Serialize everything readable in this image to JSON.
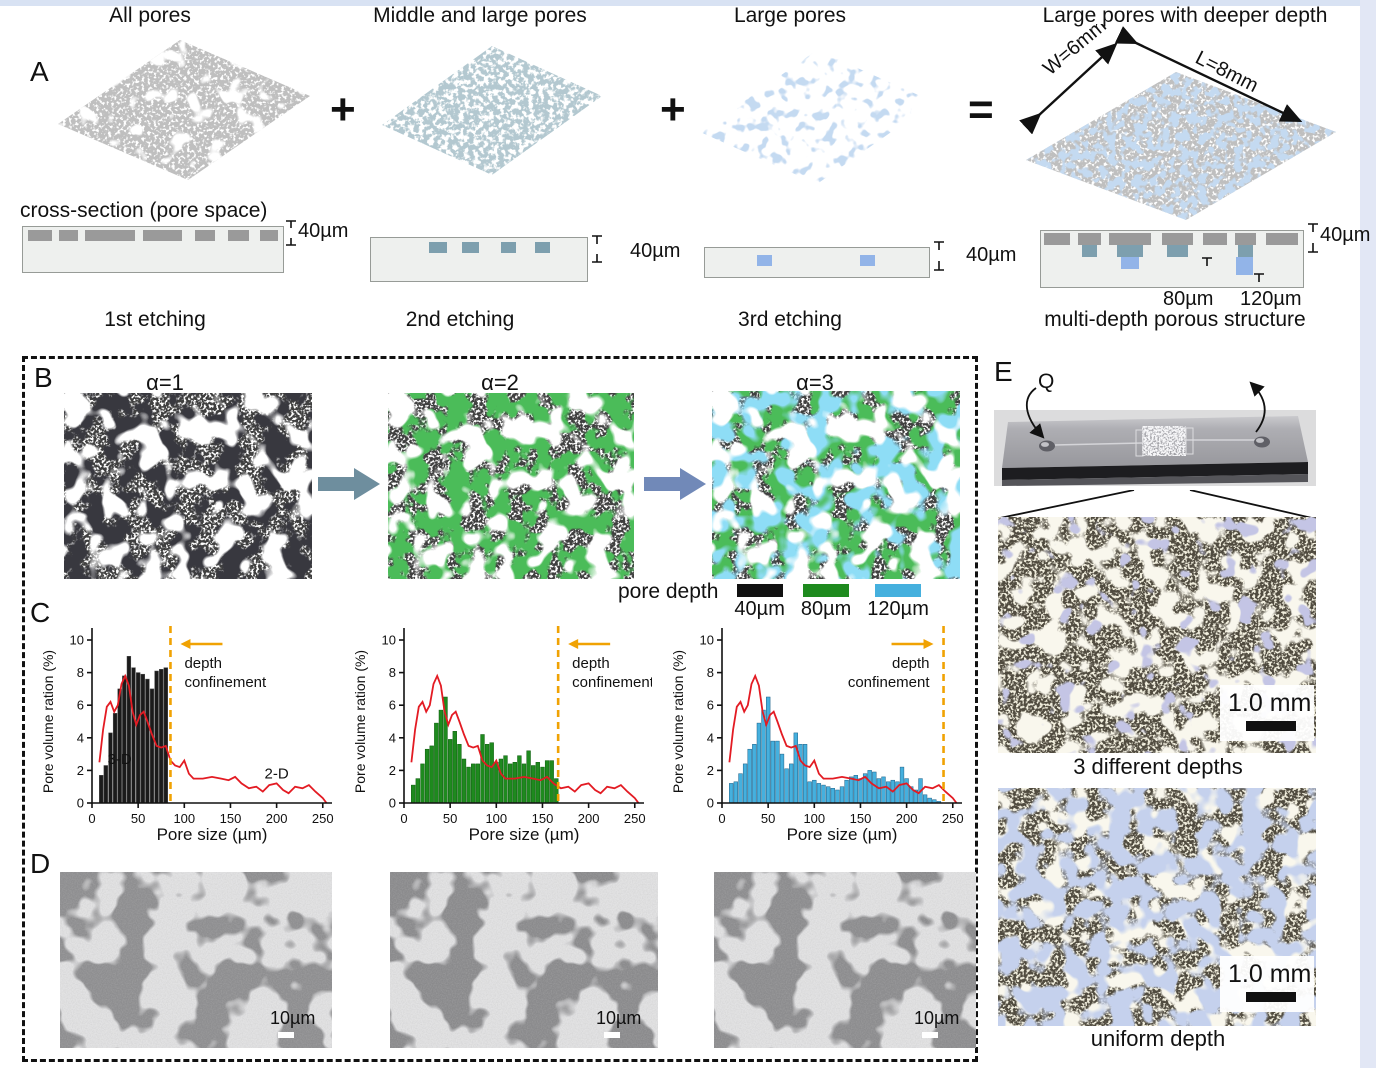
{
  "colors": {
    "orange_confinement": "#f0a203",
    "red_curve": "#e31b23",
    "bar_black": "#1b1b1b",
    "bar_green": "#1e8a1e",
    "bar_cyan": "#45b0de",
    "slab_gray": "#858585",
    "slab_teal": "#7394a1",
    "slab_blue": "#8fb2e0",
    "block_arrow_1": "#6e8e9e",
    "block_arrow_2": "#7189b8",
    "frame_blue": "#dde6f5"
  },
  "panelA": {
    "label": "A",
    "column_titles": [
      "All pores",
      "Middle and large pores",
      "Large pores",
      "Large pores with deeper depth"
    ],
    "operators": [
      "+",
      "+",
      "="
    ],
    "dim_width": "W=6mm",
    "dim_length": "L=8mm",
    "cross_section_heading": "cross-section (pore space)",
    "sections": [
      {
        "depth_label": "40µm",
        "caption": "1st etching"
      },
      {
        "depth_label": "40µm",
        "caption": "2nd etching"
      },
      {
        "depth_label": "40µm",
        "caption": "3rd etching"
      },
      {
        "depth_label": "40µm",
        "depth_80": "80µm",
        "depth_120": "120µm",
        "caption": "multi-depth porous structure"
      }
    ]
  },
  "panelB": {
    "label": "B",
    "alphas": [
      "α=1",
      "α=2",
      "α=3"
    ],
    "legend": {
      "title": "pore depth",
      "items": [
        {
          "label": "40µm",
          "color": "#111111"
        },
        {
          "label": "80µm",
          "color": "#1e8a1e"
        },
        {
          "label": "120µm",
          "color": "#45b0de"
        }
      ]
    }
  },
  "panelC": {
    "label": "C"
  },
  "panelD": {
    "label": "D",
    "scalebar_label": "10µm"
  },
  "panelE": {
    "label": "E",
    "flow_label": "Q",
    "images": [
      {
        "caption": "3 different depths",
        "scalebar": "1.0 mm"
      },
      {
        "caption": "uniform depth",
        "scalebar": "1.0 mm"
      }
    ]
  },
  "chart_data": [
    {
      "type": "bar",
      "title": "",
      "xlabel": "Pore size (µm)",
      "ylabel": "Pore volume ration (%)",
      "xlim": [
        0,
        260
      ],
      "ylim": [
        0,
        10
      ],
      "xticks": [
        0,
        50,
        100,
        150,
        200,
        250
      ],
      "yticks": [
        0,
        2,
        4,
        6,
        8,
        10
      ],
      "bin_width": 5,
      "bar_color": "#1b1b1b",
      "bar_edge": "#4a4a4a",
      "bars": {
        "x": [
          10,
          15,
          20,
          25,
          30,
          35,
          40,
          45,
          50,
          55,
          60,
          65,
          70,
          75,
          80
        ],
        "values": [
          1.7,
          2.3,
          4.3,
          5.5,
          7.0,
          7.8,
          9.0,
          8.3,
          8.0,
          7.9,
          7.6,
          7.0,
          8.1,
          8.2,
          8.3
        ]
      },
      "line_2d": {
        "color": "#e31b23",
        "x": [
          8,
          12,
          16,
          20,
          24,
          28,
          32,
          36,
          40,
          44,
          48,
          52,
          56,
          60,
          65,
          70,
          75,
          80,
          85,
          90,
          95,
          100,
          105,
          110,
          120,
          130,
          140,
          148,
          155,
          162,
          170,
          178,
          185,
          192,
          200,
          207,
          213,
          220,
          228,
          235,
          242,
          250,
          254
        ],
        "y": [
          2.5,
          4.5,
          5.9,
          6.2,
          5.6,
          6.0,
          7.3,
          7.8,
          7.2,
          5.6,
          4.8,
          5.4,
          5.6,
          5.0,
          4.2,
          3.5,
          3.4,
          3.5,
          2.6,
          2.3,
          2.2,
          2.6,
          1.8,
          1.5,
          1.5,
          1.6,
          1.5,
          1.4,
          1.6,
          1.2,
          0.9,
          1.0,
          0.7,
          1.1,
          1.2,
          0.8,
          0.6,
          1.0,
          0.9,
          1.1,
          0.7,
          0.3,
          0.0
        ]
      },
      "confinement_x": 85,
      "confinement_color": "#f0a203",
      "annotation": "depth confinement",
      "arrow_dir": "left",
      "labels": [
        {
          "text": "3-D",
          "x": 30,
          "y": 2.4,
          "color": "#ffffff"
        },
        {
          "text": "2-D",
          "x": 200,
          "y": 1.5,
          "color": "#e31b23"
        }
      ]
    },
    {
      "type": "bar",
      "title": "",
      "xlabel": "Pore size (µm)",
      "ylabel": "Pore volume ration (%)",
      "xlim": [
        0,
        260
      ],
      "ylim": [
        0,
        10
      ],
      "xticks": [
        0,
        50,
        100,
        150,
        200,
        250
      ],
      "yticks": [
        0,
        2,
        4,
        6,
        8,
        10
      ],
      "bin_width": 5,
      "bar_color": "#1e8a1e",
      "bar_edge": "#0c5a0c",
      "bars": {
        "x": [
          10,
          15,
          20,
          25,
          30,
          35,
          40,
          45,
          50,
          55,
          60,
          65,
          70,
          75,
          80,
          85,
          90,
          95,
          100,
          105,
          110,
          115,
          120,
          125,
          130,
          135,
          140,
          145,
          150,
          155,
          160,
          165
        ],
        "values": [
          1.1,
          1.5,
          2.4,
          3.3,
          3.5,
          4.9,
          5.7,
          6.5,
          3.9,
          4.4,
          3.6,
          2.7,
          2.2,
          2.4,
          2.4,
          4.2,
          3.6,
          3.7,
          2.5,
          2.7,
          2.9,
          2.4,
          2.5,
          2.9,
          2.4,
          3.2,
          2.3,
          2.5,
          2.2,
          2.6,
          2.6,
          1.5
        ]
      },
      "line_2d": {
        "color": "#e31b23",
        "x": [
          8,
          12,
          16,
          20,
          24,
          28,
          32,
          36,
          40,
          44,
          48,
          52,
          56,
          60,
          65,
          70,
          75,
          80,
          85,
          90,
          95,
          100,
          105,
          110,
          120,
          130,
          140,
          148,
          155,
          162,
          170,
          178,
          185,
          192,
          200,
          207,
          213,
          220,
          228,
          235,
          242,
          250,
          254
        ],
        "y": [
          2.5,
          4.5,
          5.9,
          6.2,
          5.6,
          6.0,
          7.3,
          7.8,
          7.2,
          5.6,
          4.8,
          5.4,
          5.6,
          5.0,
          4.2,
          3.5,
          3.4,
          3.5,
          2.6,
          2.3,
          2.2,
          2.6,
          1.8,
          1.5,
          1.5,
          1.6,
          1.5,
          1.4,
          1.6,
          1.2,
          0.9,
          1.0,
          0.7,
          1.1,
          1.2,
          0.8,
          0.6,
          1.0,
          0.9,
          1.1,
          0.7,
          0.3,
          0.0
        ]
      },
      "confinement_x": 167,
      "confinement_color": "#f0a203",
      "annotation": "depth confinement",
      "arrow_dir": "left",
      "labels": []
    },
    {
      "type": "bar",
      "title": "",
      "xlabel": "Pore size (µm)",
      "ylabel": "Pore volume ration (%)",
      "xlim": [
        0,
        260
      ],
      "ylim": [
        0,
        10
      ],
      "xticks": [
        0,
        50,
        100,
        150,
        200,
        250
      ],
      "yticks": [
        0,
        2,
        4,
        6,
        8,
        10
      ],
      "bin_width": 5,
      "bar_color": "#45b0de",
      "bar_edge": "#1c5f85",
      "bars": {
        "x": [
          10,
          15,
          20,
          25,
          30,
          35,
          40,
          45,
          50,
          55,
          60,
          65,
          70,
          75,
          80,
          85,
          90,
          95,
          100,
          105,
          110,
          115,
          120,
          125,
          130,
          135,
          140,
          145,
          150,
          155,
          160,
          165,
          170,
          175,
          180,
          185,
          190,
          195,
          200,
          205,
          210,
          215,
          220,
          225,
          230,
          235
        ],
        "values": [
          1.2,
          1.3,
          1.8,
          2.4,
          3.3,
          3.6,
          4.9,
          5.7,
          6.5,
          3.8,
          3.8,
          3.0,
          2.1,
          2.4,
          4.3,
          3.6,
          3.6,
          1.3,
          1.4,
          1.2,
          1.1,
          1.0,
          0.9,
          0.8,
          1.0,
          1.4,
          1.6,
          1.7,
          1.5,
          1.8,
          2.0,
          1.9,
          1.5,
          1.6,
          1.3,
          1.4,
          1.3,
          2.2,
          1.5,
          1.0,
          0.8,
          1.5,
          0.5,
          0.3,
          0.2,
          0.1
        ]
      },
      "line_2d": {
        "color": "#e31b23",
        "x": [
          8,
          12,
          16,
          20,
          24,
          28,
          32,
          36,
          40,
          44,
          48,
          52,
          56,
          60,
          65,
          70,
          75,
          80,
          85,
          90,
          95,
          100,
          105,
          110,
          120,
          130,
          140,
          148,
          155,
          162,
          170,
          178,
          185,
          192,
          200,
          207,
          213,
          220,
          228,
          235,
          242,
          250,
          254
        ],
        "y": [
          2.5,
          4.5,
          5.9,
          6.2,
          5.6,
          6.0,
          7.3,
          7.8,
          7.2,
          5.6,
          4.8,
          5.4,
          5.6,
          5.0,
          4.2,
          3.5,
          3.4,
          3.5,
          2.6,
          2.3,
          2.2,
          2.6,
          1.8,
          1.5,
          1.5,
          1.6,
          1.5,
          1.4,
          1.6,
          1.2,
          0.9,
          1.0,
          0.7,
          1.1,
          1.2,
          0.8,
          0.6,
          1.0,
          0.9,
          1.1,
          0.7,
          0.3,
          0.0
        ]
      },
      "confinement_x": 240,
      "confinement_color": "#f0a203",
      "annotation": "depth confinement",
      "arrow_dir": "right",
      "labels": []
    }
  ]
}
